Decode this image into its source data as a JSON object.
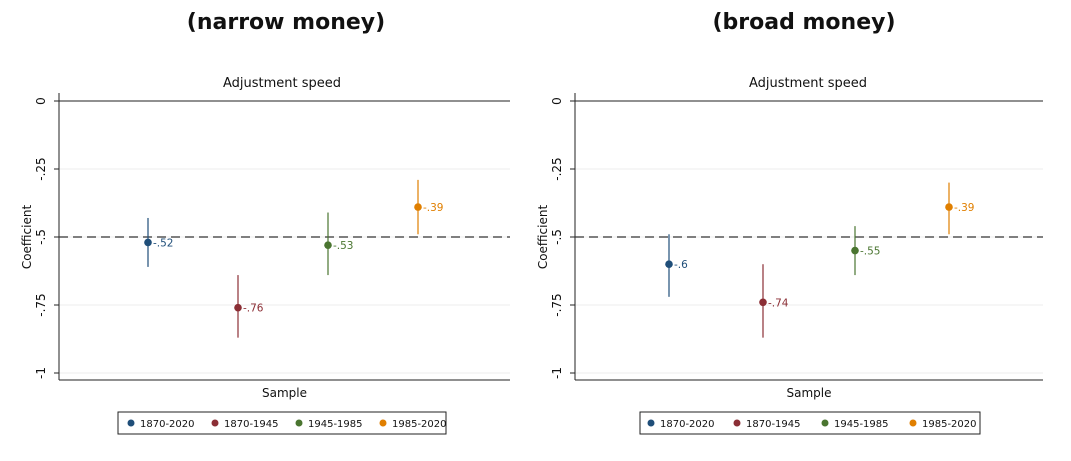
{
  "panels": [
    {
      "heading": "(narrow money)",
      "chart_data": {
        "type": "scatter",
        "title": "Adjustment speed",
        "xlabel": "Sample",
        "ylabel": "Coefficient",
        "ylim": [
          -1,
          0
        ],
        "yticks": [
          0,
          -0.25,
          -0.5,
          -0.75,
          -1
        ],
        "ytick_labels": [
          "0",
          "-.25",
          "-.5",
          "-.75",
          "-1"
        ],
        "reference_line": -0.5,
        "grid": true,
        "legend_position": "bottom",
        "series": [
          {
            "name": "1870-2020",
            "color": "#1f4e79",
            "value": -0.52,
            "label": "-.52",
            "ci": [
              -0.61,
              -0.43
            ]
          },
          {
            "name": "1870-1945",
            "color": "#8b2e35",
            "value": -0.76,
            "label": "-.76",
            "ci": [
              -0.87,
              -0.64
            ]
          },
          {
            "name": "1945-1985",
            "color": "#4a7530",
            "value": -0.53,
            "label": "-.53",
            "ci": [
              -0.64,
              -0.41
            ]
          },
          {
            "name": "1985-2020",
            "color": "#e07f00",
            "value": -0.39,
            "label": "-.39",
            "ci": [
              -0.49,
              -0.29
            ]
          }
        ]
      }
    },
    {
      "heading": "(broad money)",
      "chart_data": {
        "type": "scatter",
        "title": "Adjustment speed",
        "xlabel": "Sample",
        "ylabel": "Coefficient",
        "ylim": [
          -1,
          0
        ],
        "yticks": [
          0,
          -0.25,
          -0.5,
          -0.75,
          -1
        ],
        "ytick_labels": [
          "0",
          "-.25",
          "-.5",
          "-.75",
          "-1"
        ],
        "reference_line": -0.5,
        "grid": true,
        "legend_position": "bottom",
        "series": [
          {
            "name": "1870-2020",
            "color": "#1f4e79",
            "value": -0.6,
            "label": "-.6",
            "ci": [
              -0.72,
              -0.49
            ]
          },
          {
            "name": "1870-1945",
            "color": "#8b2e35",
            "value": -0.74,
            "label": "-.74",
            "ci": [
              -0.87,
              -0.6
            ]
          },
          {
            "name": "1945-1985",
            "color": "#4a7530",
            "value": -0.55,
            "label": "-.55",
            "ci": [
              -0.64,
              -0.46
            ]
          },
          {
            "name": "1985-2020",
            "color": "#e07f00",
            "value": -0.39,
            "label": "-.39",
            "ci": [
              -0.49,
              -0.3
            ]
          }
        ]
      }
    }
  ]
}
